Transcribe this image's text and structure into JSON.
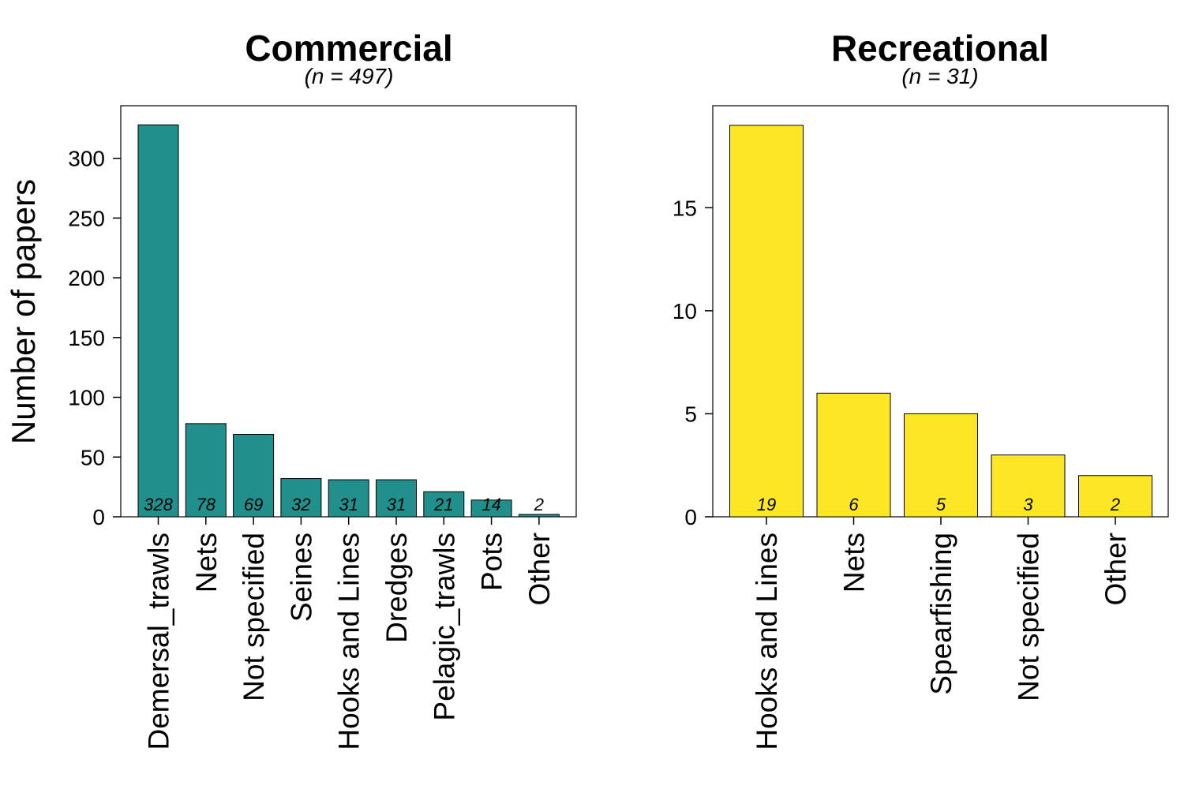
{
  "ylabel": "Number of papers",
  "colors": {
    "commercial": "#21908C",
    "recreational": "#FDE725",
    "axis": "#000000"
  },
  "chart_data": [
    {
      "type": "bar",
      "title": "Commercial",
      "subtitle": "(n = 497)",
      "ylabel": "Number of papers",
      "categories": [
        "Demersal_trawls",
        "Nets",
        "Not specified",
        "Seines",
        "Hooks and Lines",
        "Dredges",
        "Pelagic_trawls",
        "Pots",
        "Other"
      ],
      "values": [
        328,
        78,
        69,
        32,
        31,
        31,
        21,
        14,
        2
      ],
      "data_labels": [
        "328",
        "78",
        "69",
        "32",
        "31",
        "31",
        "21",
        "14",
        "2"
      ],
      "yticks": [
        0,
        50,
        100,
        150,
        200,
        250,
        300
      ],
      "ylim": [
        0,
        344
      ],
      "color": "#21908C",
      "grid": false
    },
    {
      "type": "bar",
      "title": "Recreational",
      "subtitle": "(n = 31)",
      "categories": [
        "Hooks and Lines",
        "Nets",
        "Spearfishing",
        "Not specified",
        "Other"
      ],
      "values": [
        19,
        6,
        5,
        3,
        2
      ],
      "data_labels": [
        "19",
        "6",
        "5",
        "3",
        "2"
      ],
      "yticks": [
        0,
        5,
        10,
        15
      ],
      "ylim": [
        0,
        19.95
      ],
      "color": "#FDE725",
      "grid": false
    }
  ]
}
